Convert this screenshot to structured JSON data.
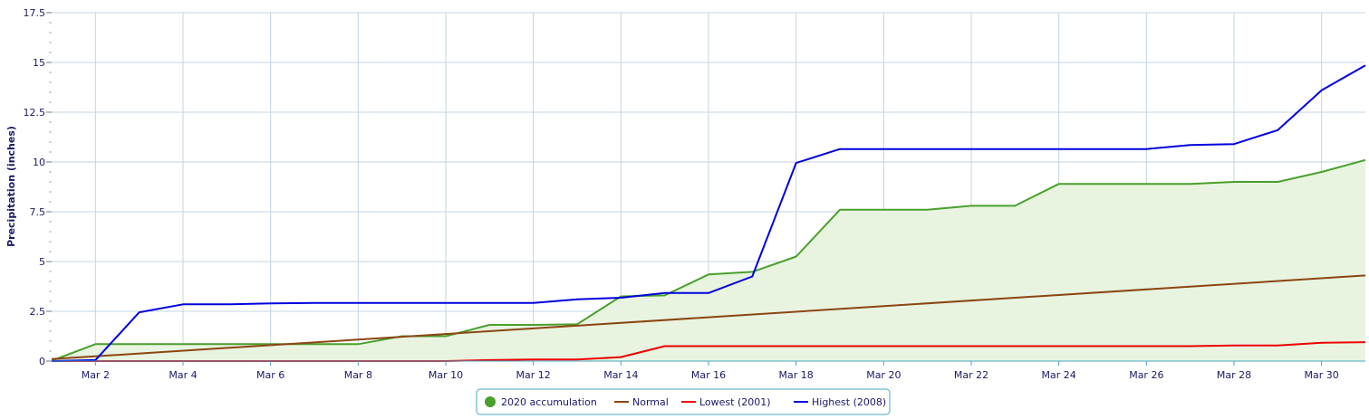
{
  "chart_data": {
    "type": "line",
    "ylabel": "Precipitation (inches)",
    "ylim": [
      0,
      17.5
    ],
    "xlim": [
      1,
      31
    ],
    "y_ticks": [
      0,
      2.5,
      5,
      7.5,
      10,
      12.5,
      15,
      17.5
    ],
    "y_tick_labels": [
      "0",
      "2.5",
      "5",
      "7.5",
      "10",
      "12.5",
      "15",
      "17.5"
    ],
    "x_ticks": [
      2,
      4,
      6,
      8,
      10,
      12,
      14,
      16,
      18,
      20,
      22,
      24,
      26,
      28,
      30
    ],
    "x_tick_labels": [
      "Mar 2",
      "Mar 4",
      "Mar 6",
      "Mar 8",
      "Mar 10",
      "Mar 12",
      "Mar 14",
      "Mar 16",
      "Mar 18",
      "Mar 20",
      "Mar 22",
      "Mar 24",
      "Mar 26",
      "Mar 28",
      "Mar 30"
    ],
    "grid": true,
    "legend_position": "bottom-center",
    "series": [
      {
        "name": "2020 accumulation",
        "color": "#4aa02c",
        "fill": "#e8f4e0",
        "style": "area",
        "x": [
          1,
          2,
          3,
          4,
          5,
          6,
          7,
          8,
          9,
          10,
          11,
          12,
          13,
          14,
          15,
          16,
          17,
          18,
          19,
          20,
          21,
          22,
          23,
          24,
          25,
          26,
          27,
          28,
          29,
          30,
          31
        ],
        "values": [
          0.02,
          0.85,
          0.85,
          0.85,
          0.85,
          0.85,
          0.85,
          0.85,
          1.25,
          1.25,
          1.82,
          1.82,
          1.85,
          3.25,
          3.3,
          4.35,
          4.48,
          5.25,
          7.6,
          7.6,
          7.6,
          7.8,
          7.8,
          8.9,
          8.9,
          8.9,
          8.9,
          9.0,
          9.0,
          9.5,
          10.1
        ]
      },
      {
        "name": "Normal",
        "color": "#8b4513",
        "style": "line",
        "x": [
          1,
          31
        ],
        "values": [
          0.1,
          4.3
        ]
      },
      {
        "name": "Lowest (2001)",
        "color": "#ee0000",
        "style": "line",
        "x": [
          1,
          2,
          3,
          4,
          5,
          6,
          7,
          8,
          9,
          10,
          11,
          12,
          13,
          14,
          15,
          16,
          17,
          18,
          19,
          20,
          21,
          22,
          23,
          24,
          25,
          26,
          27,
          28,
          29,
          30,
          31
        ],
        "values": [
          0,
          0,
          0,
          0,
          0,
          0,
          0,
          0,
          0,
          0,
          0.05,
          0.08,
          0.08,
          0.2,
          0.75,
          0.75,
          0.75,
          0.75,
          0.75,
          0.75,
          0.75,
          0.75,
          0.75,
          0.75,
          0.75,
          0.75,
          0.75,
          0.78,
          0.78,
          0.92,
          0.95
        ]
      },
      {
        "name": "Highest (2008)",
        "color": "#0000dd",
        "style": "line",
        "x": [
          1,
          2,
          3,
          4,
          5,
          6,
          7,
          8,
          9,
          10,
          11,
          12,
          13,
          14,
          15,
          16,
          17,
          18,
          19,
          20,
          21,
          22,
          23,
          24,
          25,
          26,
          27,
          28,
          29,
          30,
          31
        ],
        "values": [
          0,
          0.05,
          2.45,
          2.85,
          2.85,
          2.9,
          2.92,
          2.92,
          2.92,
          2.92,
          2.92,
          2.92,
          3.1,
          3.18,
          3.42,
          3.42,
          4.25,
          9.95,
          10.65,
          10.65,
          10.65,
          10.65,
          10.65,
          10.65,
          10.65,
          10.65,
          10.85,
          10.9,
          11.6,
          13.6,
          14.85
        ]
      }
    ]
  }
}
